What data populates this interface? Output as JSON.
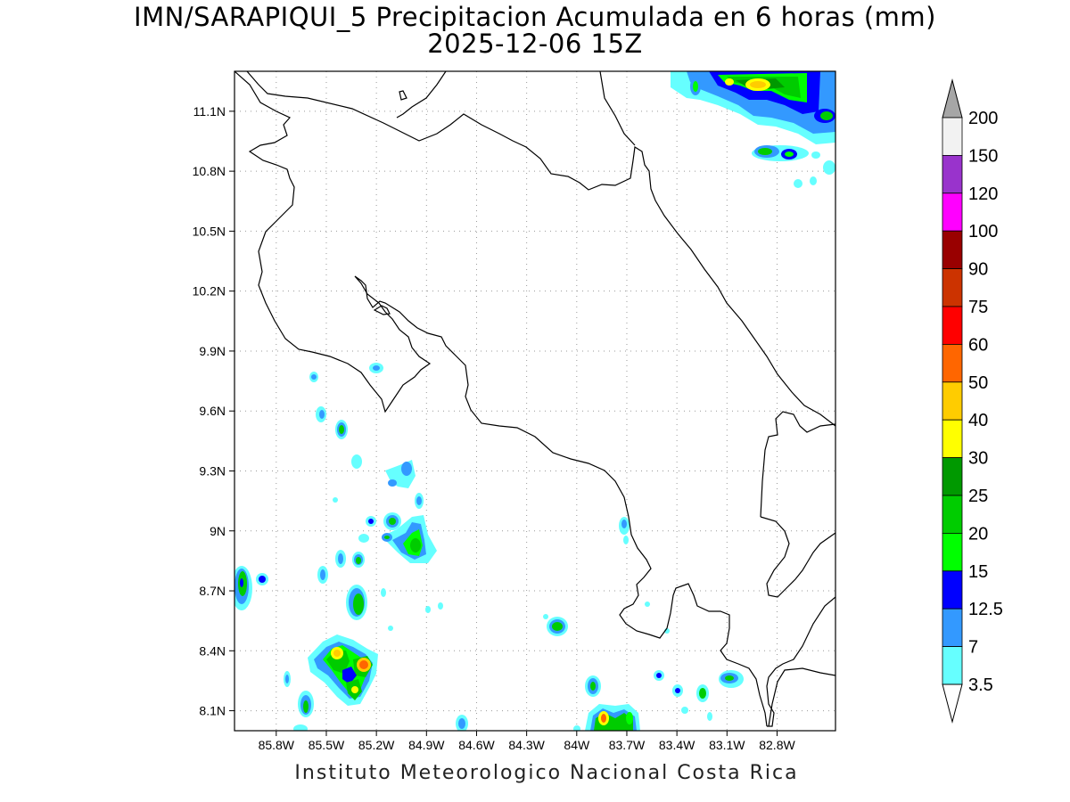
{
  "title_line1": "IMN/SARAPIQUI_5 Precipitacion Acumulada en 6 horas (mm)",
  "title_line2": "2025-12-06 15Z",
  "credit": "Instituto Meteorologico Nacional Costa Rica",
  "map": {
    "lon_range": [
      -86.05,
      -82.45
    ],
    "lat_range": [
      8.0,
      11.3
    ],
    "lat_ticks": [
      "11.1N",
      "10.8N",
      "10.5N",
      "10.2N",
      "9.9N",
      "9.6N",
      "9.3N",
      "9N",
      "8.7N",
      "8.4N",
      "8.1N"
    ],
    "lon_ticks": [
      "85.8W",
      "85.5W",
      "85.2W",
      "84.9W",
      "84.6W",
      "84.3W",
      "84W",
      "83.7W",
      "83.4W",
      "83.1W",
      "82.8W"
    ],
    "grid": "dotted"
  },
  "colorbar": {
    "labels": [
      "200",
      "150",
      "120",
      "100",
      "90",
      "75",
      "60",
      "50",
      "40",
      "30",
      "25",
      "20",
      "15",
      "12.5",
      "7",
      "3.5"
    ],
    "colors": [
      "#f2f2f2",
      "#9933cc",
      "#ff00ff",
      "#990000",
      "#cc3300",
      "#ff0000",
      "#ff6600",
      "#ffcc00",
      "#ffff00",
      "#009900",
      "#00cc00",
      "#00ff00",
      "#0000ff",
      "#3399ff",
      "#66ffff"
    ],
    "top_arrow_color": "#a6a6a6",
    "bottom_arrow_color": "#ffffff"
  }
}
